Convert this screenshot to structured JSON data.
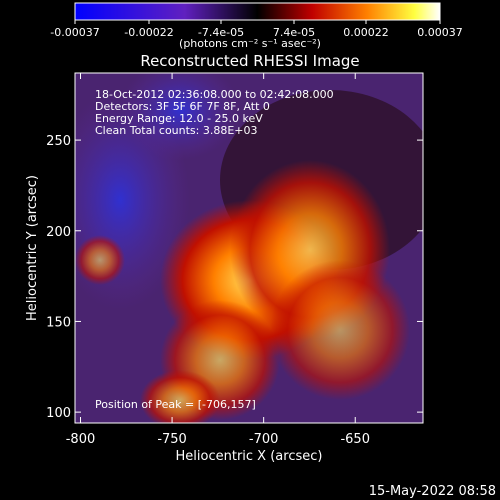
{
  "chart_data": {
    "type": "image",
    "title": "Reconstructed RHESSI Image",
    "colorbar": {
      "lim": [
        -0.00037,
        0.00037
      ],
      "ticks": [
        {
          "value": -0.00037,
          "label": "-0.00037"
        },
        {
          "value": -0.00022,
          "label": "-0.00022"
        },
        {
          "value": -7.4e-05,
          "label": "-7.4e-05"
        },
        {
          "value": 7.4e-05,
          "label": "7.4e-05"
        },
        {
          "value": 0.00022,
          "label": "0.00022"
        },
        {
          "value": 0.00037,
          "label": "0.00037"
        }
      ],
      "label": "(photons cm⁻² s⁻¹ asec⁻²)"
    },
    "annotations": [
      "18-Oct-2012 02:36:08.000 to 02:42:08.000",
      "Detectors: 3F 5F 6F 7F 8F, Att 0",
      "Energy Range: 12.0 - 25.0 keV",
      "Clean     Total counts: 3.88E+03"
    ],
    "peak_label": "Position of Peak = [-706,157]",
    "x_label": "Heliocentric X (arcsec)",
    "y_label": "Heliocentric Y (arcsec)",
    "xlim": [
      -803,
      -613
    ],
    "xticks": [
      -800,
      -750,
      -700,
      -650
    ],
    "ylim": [
      94,
      287
    ],
    "yticks": [
      100,
      150,
      200,
      250
    ],
    "timestamp": "15-May-2022 08:58"
  }
}
